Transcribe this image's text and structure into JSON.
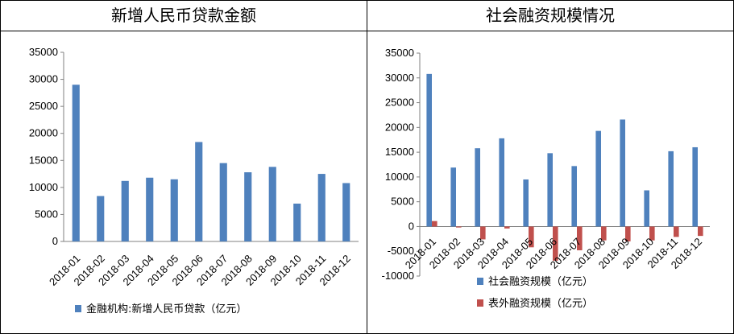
{
  "charts": [
    {
      "title": "新增人民币贷款金额",
      "chart_data": {
        "type": "bar",
        "categories": [
          "2018-01",
          "2018-02",
          "2018-03",
          "2018-04",
          "2018-05",
          "2018-06",
          "2018-07",
          "2018-08",
          "2018-09",
          "2018-10",
          "2018-11",
          "2018-12"
        ],
        "series": [
          {
            "name": "金融机构:新增人民币贷款（亿元）",
            "color": "#4F81BD",
            "values": [
              29000,
              8400,
              11200,
              11800,
              11500,
              18400,
              14500,
              12800,
              13800,
              7000,
              12500,
              10800
            ]
          }
        ],
        "yticks": [
          0,
          5000,
          10000,
          15000,
          20000,
          25000,
          30000,
          35000
        ],
        "ylim": [
          0,
          35000
        ],
        "legend": "bottom",
        "grid": false
      }
    },
    {
      "title": "社会融资规模情况",
      "chart_data": {
        "type": "bar",
        "categories": [
          "2018-01",
          "2018-02",
          "2018-03",
          "2018-04",
          "2018-05",
          "2018-06",
          "2018-07",
          "2018-08",
          "2018-09",
          "2018-10",
          "2018-11",
          "2018-12"
        ],
        "series": [
          {
            "name": "社会融资规模（亿元）",
            "color": "#4F81BD",
            "values": [
              30800,
              11900,
              15800,
              17800,
              9500,
              14800,
              12200,
              19300,
              21600,
              7300,
              15200,
              16000
            ]
          },
          {
            "name": "表外融资规模（亿元）",
            "color": "#C0504D",
            "values": [
              1100,
              -200,
              -2600,
              -400,
              -4200,
              -6900,
              -4800,
              -2800,
              -3000,
              -2800,
              -2100,
              -1900
            ]
          }
        ],
        "yticks": [
          -10000,
          -5000,
          0,
          5000,
          10000,
          15000,
          20000,
          25000,
          30000,
          35000
        ],
        "ylim": [
          -10000,
          35000
        ],
        "legend": "bottom",
        "grid": false
      }
    }
  ]
}
